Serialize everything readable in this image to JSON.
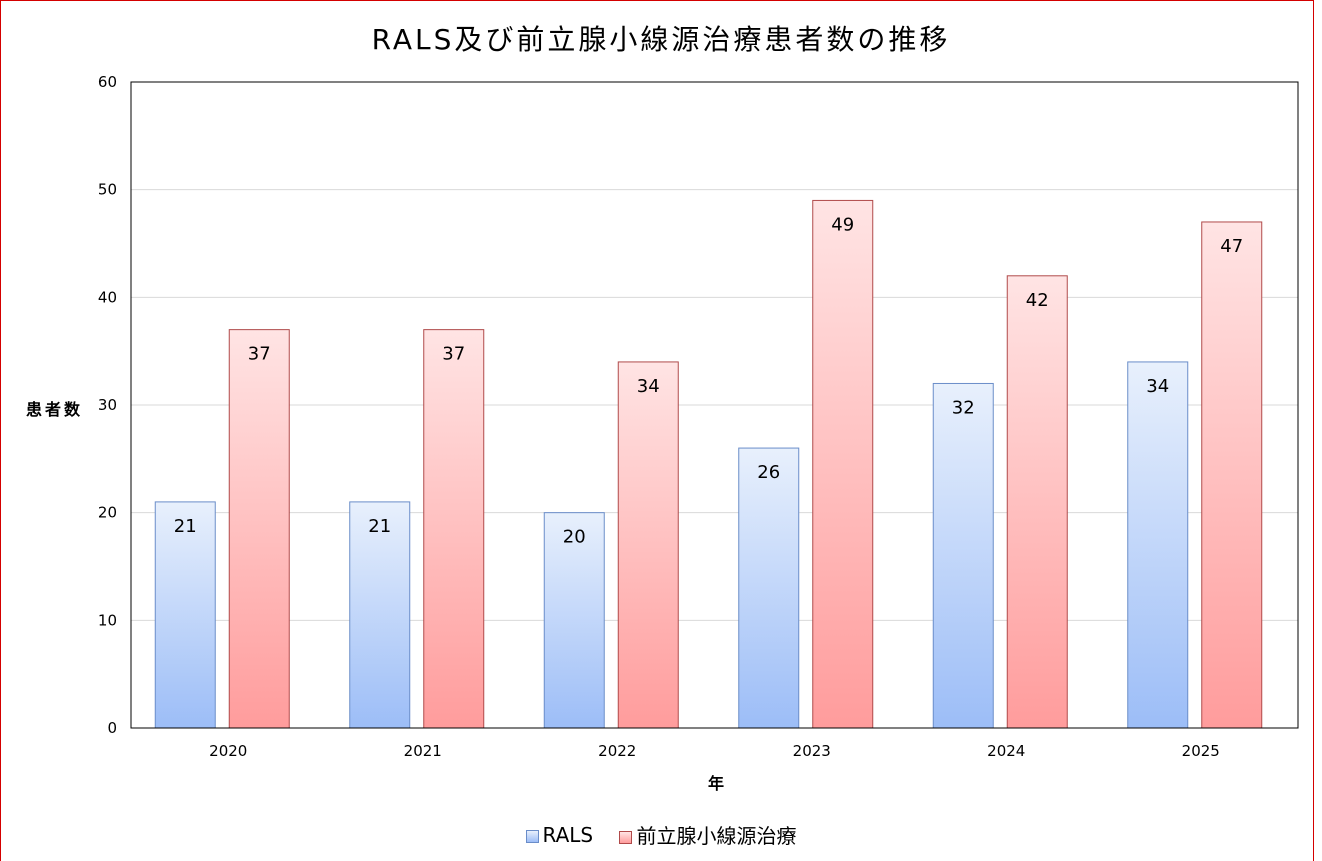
{
  "chart_data": {
    "type": "bar",
    "title": "RALS及び前立腺小線源治療患者数の推移",
    "xlabel": "年",
    "ylabel": "患者数",
    "categories": [
      "2020",
      "2021",
      "2022",
      "2023",
      "2024",
      "2025"
    ],
    "series": [
      {
        "name": "RALS",
        "values": [
          21,
          21,
          20,
          26,
          32,
          34
        ],
        "color_top": "#e8f0fc",
        "color_bottom": "#9cbdf7",
        "border": "#6a8dc9"
      },
      {
        "name": "前立腺小線源治療",
        "values": [
          37,
          37,
          34,
          49,
          42,
          47
        ],
        "color_top": "#ffe4e4",
        "color_bottom": "#ff9c9c",
        "border": "#b04a4a"
      }
    ],
    "ylim": [
      0,
      60
    ],
    "yticks": [
      "0",
      "10",
      "20",
      "30",
      "40",
      "50",
      "60"
    ],
    "grid": true,
    "legend": "bottom"
  }
}
